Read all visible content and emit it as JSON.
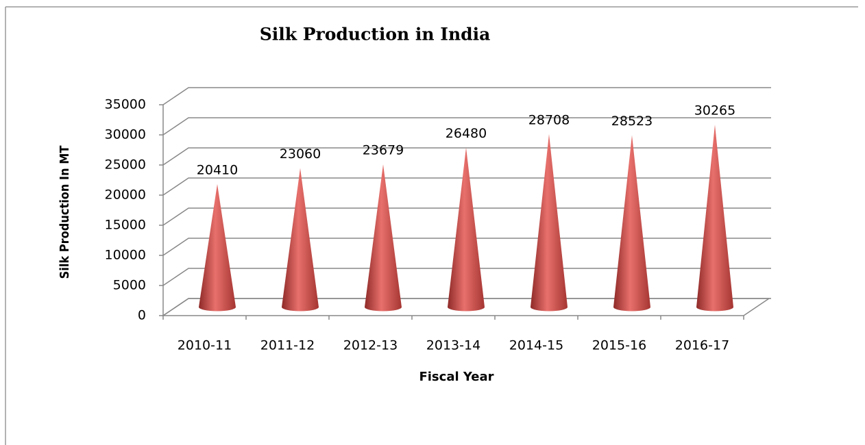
{
  "chart_data": {
    "type": "cone",
    "title": "Silk Production in India",
    "x_label": "Fiscal Year",
    "y_label": "Silk Production In  MT",
    "categories": [
      "2010-11",
      "2011-12",
      "2012-13",
      "2013-14",
      "2014-15",
      "2015-16",
      "2016-17"
    ],
    "values": [
      20410,
      23060,
      23679,
      26480,
      28708,
      28523,
      30265
    ],
    "color": "#c0504d",
    "ylim": [
      0,
      35000
    ],
    "yticks": [
      0,
      5000,
      10000,
      15000,
      20000,
      25000,
      30000,
      35000
    ],
    "grid": true
  }
}
